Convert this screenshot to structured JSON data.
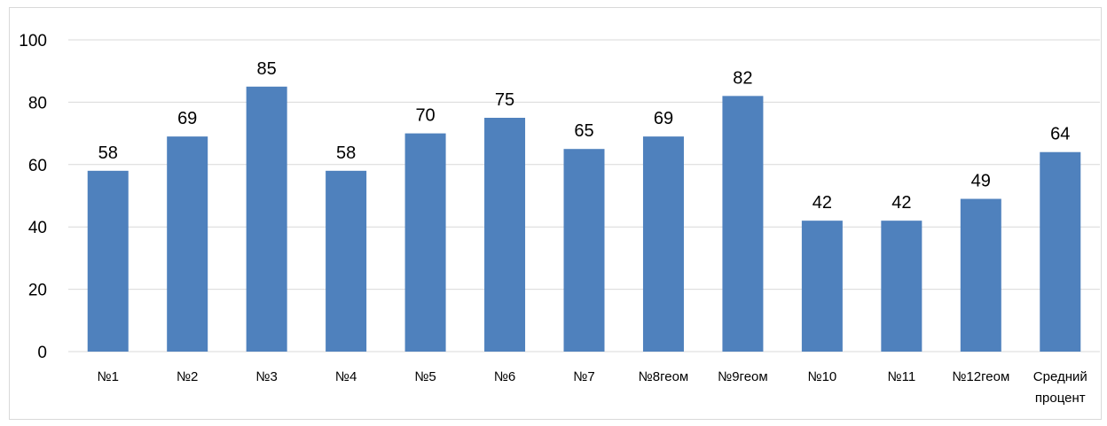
{
  "chart_data": {
    "type": "bar",
    "categories": [
      "№1",
      "№2",
      "№3",
      "№4",
      "№5",
      "№6",
      "№7",
      "№8геом",
      "№9геом",
      "№10",
      "№11",
      "№12геом",
      "Средний процент"
    ],
    "series": [
      {
        "values": [
          58,
          69,
          85,
          58,
          70,
          75,
          65,
          69,
          82,
          42,
          42,
          49,
          64
        ]
      }
    ],
    "data_labels": [
      "58",
      "69",
      "85",
      "58",
      "70",
      "75",
      "65",
      "69",
      "82",
      "42",
      "42",
      "49",
      "64"
    ],
    "y_ticks": [
      "0",
      "20",
      "40",
      "60",
      "80",
      "100"
    ],
    "ylim": [
      0,
      100
    ],
    "title": "",
    "xlabel": "",
    "ylabel": "",
    "grid": true,
    "legend": "none",
    "bar_color": "#4f81bd",
    "grid_color": "#d9d9d9"
  }
}
